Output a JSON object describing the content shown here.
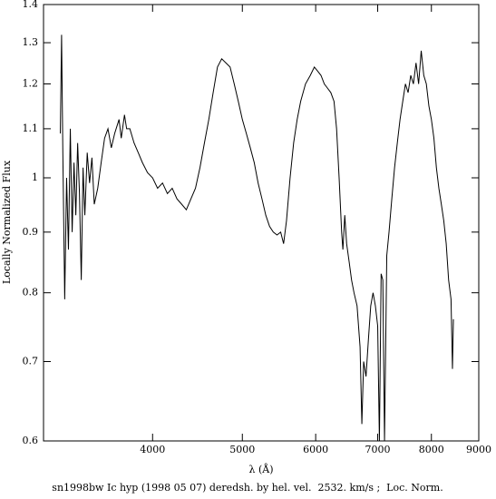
{
  "chart_data": {
    "type": "line",
    "title": "sn1998bw Ic hyp (1998 05 07) deredsh. by hel. vel.  2532. km/s ;  Loc. Norm.",
    "x_label": "λ (Å)",
    "y_label": "Locally Normalized Flux",
    "xlog": true,
    "ylog": true,
    "color": "#000000",
    "xlim": [
      3050,
      9000
    ],
    "xticks": [
      4000,
      5000,
      6000,
      7000,
      8000,
      9000
    ],
    "ylim": [
      0.6,
      1.4
    ],
    "yticks": [
      0.6,
      0.7,
      0.8,
      0.9,
      1,
      1.1,
      1.2,
      1.3,
      1.4
    ],
    "x": [
      3180,
      3190,
      3200,
      3215,
      3230,
      3245,
      3260,
      3275,
      3290,
      3305,
      3320,
      3335,
      3350,
      3365,
      3380,
      3400,
      3420,
      3440,
      3460,
      3490,
      3520,
      3550,
      3580,
      3610,
      3640,
      3680,
      3700,
      3730,
      3750,
      3780,
      3820,
      3860,
      3900,
      3950,
      4000,
      4050,
      4100,
      4150,
      4200,
      4250,
      4300,
      4350,
      4400,
      4450,
      4500,
      4550,
      4600,
      4650,
      4700,
      4750,
      4800,
      4850,
      4900,
      4950,
      5000,
      5050,
      5100,
      5150,
      5200,
      5250,
      5300,
      5350,
      5400,
      5450,
      5500,
      5540,
      5580,
      5630,
      5680,
      5730,
      5780,
      5850,
      5920,
      5980,
      6030,
      6080,
      6130,
      6180,
      6230,
      6280,
      6320,
      6360,
      6400,
      6420,
      6450,
      6480,
      6520,
      6560,
      6600,
      6650,
      6700,
      6730,
      6760,
      6800,
      6840,
      6880,
      6920,
      6960,
      7000,
      7030,
      7060,
      7090,
      7120,
      7160,
      7200,
      7250,
      7300,
      7350,
      7400,
      7450,
      7500,
      7550,
      7600,
      7650,
      7700,
      7750,
      7800,
      7850,
      7900,
      7950,
      8000,
      8050,
      8100,
      8150,
      8200,
      8250,
      8300,
      8350,
      8400,
      8430,
      8450
    ],
    "y": [
      1.09,
      1.32,
      1.05,
      0.79,
      1.0,
      0.87,
      1.1,
      0.9,
      1.03,
      0.93,
      1.07,
      0.97,
      0.82,
      1.02,
      0.93,
      1.05,
      0.99,
      1.04,
      0.95,
      0.98,
      1.03,
      1.08,
      1.1,
      1.06,
      1.09,
      1.12,
      1.08,
      1.13,
      1.1,
      1.1,
      1.07,
      1.05,
      1.03,
      1.01,
      1.0,
      0.98,
      0.99,
      0.97,
      0.98,
      0.96,
      0.95,
      0.94,
      0.96,
      0.98,
      1.02,
      1.07,
      1.12,
      1.18,
      1.24,
      1.26,
      1.25,
      1.24,
      1.2,
      1.16,
      1.12,
      1.09,
      1.06,
      1.03,
      0.99,
      0.96,
      0.93,
      0.91,
      0.9,
      0.895,
      0.9,
      0.88,
      0.92,
      1.0,
      1.07,
      1.12,
      1.16,
      1.2,
      1.22,
      1.24,
      1.23,
      1.22,
      1.2,
      1.19,
      1.18,
      1.16,
      1.1,
      1.0,
      0.9,
      0.87,
      0.93,
      0.88,
      0.85,
      0.82,
      0.8,
      0.78,
      0.72,
      0.62,
      0.7,
      0.68,
      0.73,
      0.78,
      0.8,
      0.78,
      0.75,
      0.6,
      0.83,
      0.82,
      0.6,
      0.86,
      0.9,
      0.96,
      1.02,
      1.07,
      1.12,
      1.16,
      1.2,
      1.18,
      1.22,
      1.2,
      1.25,
      1.2,
      1.28,
      1.22,
      1.2,
      1.15,
      1.12,
      1.08,
      1.02,
      0.98,
      0.95,
      0.92,
      0.88,
      0.82,
      0.79,
      0.69,
      0.76
    ]
  }
}
